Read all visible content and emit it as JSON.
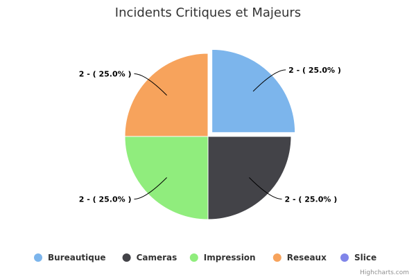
{
  "chart_data": {
    "type": "pie",
    "title": "Incidents Critiques et Majeurs",
    "slices": [
      {
        "name": "Bureautique",
        "value": 2,
        "label": "2 - ( 25.0% )",
        "color": "#7cb5ec",
        "sliced": true
      },
      {
        "name": "Cameras",
        "value": 2,
        "label": "2 - ( 25.0% )",
        "color": "#434348",
        "sliced": false
      },
      {
        "name": "Impression",
        "value": 2,
        "label": "2 - ( 25.0% )",
        "color": "#90ed7d",
        "sliced": false
      },
      {
        "name": "Reseaux",
        "value": 2,
        "label": "2 - ( 25.0% )",
        "color": "#f7a35c",
        "sliced": false
      }
    ],
    "legend": [
      {
        "name": "Bureautique",
        "color": "#7cb5ec"
      },
      {
        "name": "Cameras",
        "color": "#434348"
      },
      {
        "name": "Impression",
        "color": "#90ed7d"
      },
      {
        "name": "Reseaux",
        "color": "#f7a35c"
      },
      {
        "name": "Slice",
        "color": "#8085e9"
      }
    ],
    "legend_position": "bottom-center",
    "credits": "Highcharts.com"
  }
}
